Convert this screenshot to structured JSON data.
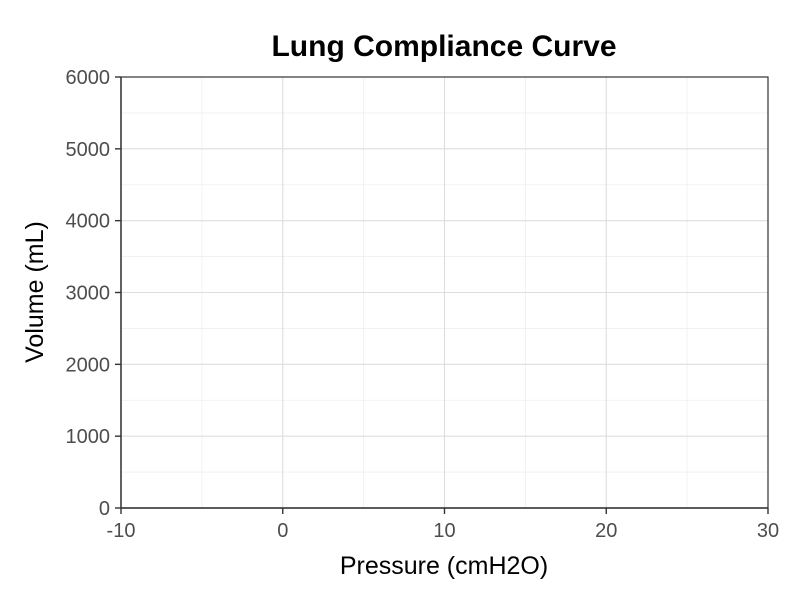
{
  "chart_data": {
    "type": "line",
    "title": "Lung Compliance Curve",
    "xlabel": "Pressure (cmH2O)",
    "ylabel": "Volume (mL)",
    "xlim": [
      -10,
      30
    ],
    "ylim": [
      0,
      6000
    ],
    "x_ticks": [
      -10,
      0,
      10,
      20,
      30
    ],
    "x_tick_labels": [
      "-10",
      "0",
      "10",
      "20",
      "30"
    ],
    "y_ticks": [
      0,
      1000,
      2000,
      3000,
      4000,
      5000,
      6000
    ],
    "y_tick_labels": [
      "0",
      "1000",
      "2000",
      "3000",
      "4000",
      "5000",
      "6000"
    ],
    "x_minor_ticks": [
      -5,
      5,
      15,
      25
    ],
    "y_minor_ticks": [
      500,
      1500,
      2500,
      3500,
      4500,
      5500
    ],
    "grid": true,
    "series": []
  },
  "colors": {
    "background": "#ffffff",
    "grid_major": "#dedede",
    "grid_minor": "#efefef",
    "axis": "#333333",
    "tick_label": "#4d4d4d",
    "text": "#000000"
  }
}
